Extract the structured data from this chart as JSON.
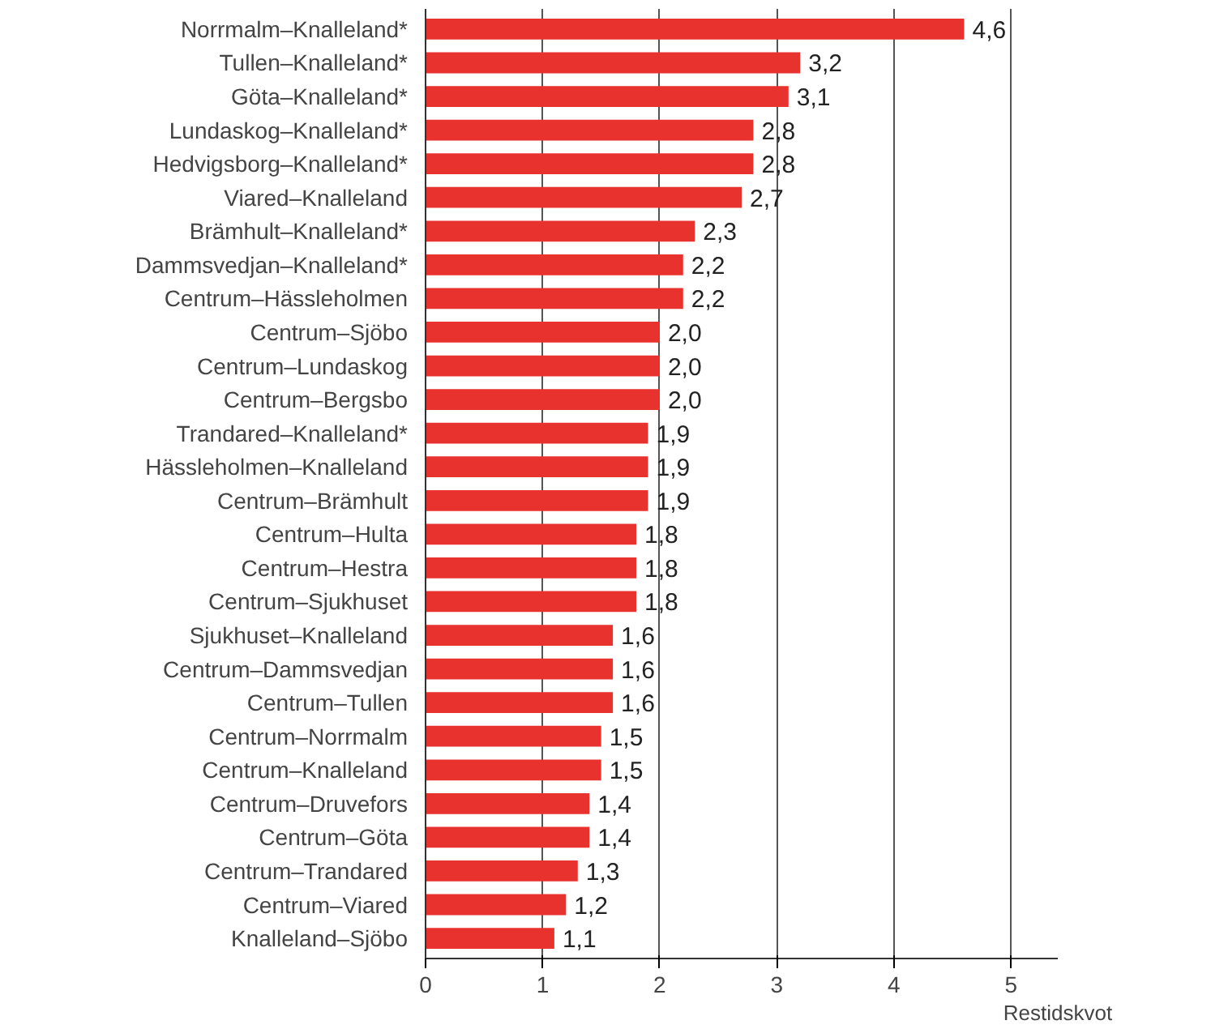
{
  "chart_data": {
    "type": "bar",
    "orientation": "horizontal",
    "xlabel": "Restidskvot",
    "categories": [
      "Norrmalm–Knalleland*",
      "Tullen–Knalleland*",
      "Göta–Knalleland*",
      "Lundaskog–Knalleland*",
      "Hedvigsborg–Knalleland*",
      "Viared–Knalleland",
      "Brämhult–Knalleland*",
      "Dammsvedjan–Knalleland*",
      "Centrum–Hässleholmen",
      "Centrum–Sjöbo",
      "Centrum–Lundaskog",
      "Centrum–Bergsbo",
      "Trandared–Knalleland*",
      "Hässleholmen–Knalleland",
      "Centrum–Brämhult",
      "Centrum–Hulta",
      "Centrum–Hestra",
      "Centrum–Sjukhuset",
      "Sjukhuset–Knalleland",
      "Centrum–Dammsvedjan",
      "Centrum–Tullen",
      "Centrum–Norrmalm",
      "Centrum–Knalleland",
      "Centrum–Druvefors",
      "Centrum–Göta",
      "Centrum–Trandared",
      "Centrum–Viared",
      "Knalleland–Sjöbo"
    ],
    "values": [
      4.6,
      3.2,
      3.1,
      2.8,
      2.8,
      2.7,
      2.3,
      2.2,
      2.2,
      2.0,
      2.0,
      2.0,
      1.9,
      1.9,
      1.9,
      1.8,
      1.8,
      1.8,
      1.6,
      1.6,
      1.6,
      1.5,
      1.5,
      1.4,
      1.4,
      1.3,
      1.2,
      1.1
    ],
    "value_labels": [
      "4,6",
      "3,2",
      "3,1",
      "2,8",
      "2,8",
      "2,7",
      "2,3",
      "2,2",
      "2,2",
      "2,0",
      "2,0",
      "2,0",
      "1,9",
      "1,9",
      "1,9",
      "1,8",
      "1,8",
      "1,8",
      "1,6",
      "1,6",
      "1,6",
      "1,5",
      "1,5",
      "1,4",
      "1,4",
      "1,3",
      "1,2",
      "1,1"
    ],
    "color": "#e8322e",
    "xlim": [
      0,
      5.4
    ],
    "xticks": [
      0,
      1,
      2,
      3,
      4,
      5
    ],
    "grid": "x"
  }
}
